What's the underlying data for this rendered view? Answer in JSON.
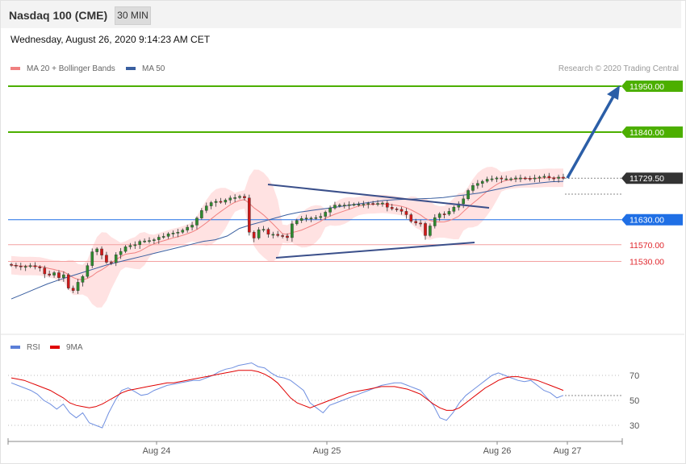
{
  "header": {
    "title": "Nasdaq 100 (CME)",
    "timeframe": "30 MIN"
  },
  "timestamp": "Wednesday, August 26, 2020 9:14:23 AM CET",
  "legend": {
    "items": [
      {
        "label": "MA 20 + Bollinger Bands",
        "color": "#f08080"
      },
      {
        "label": "MA 50",
        "color": "#3a5fa0"
      }
    ],
    "credit": "Research © 2020 Trading Central"
  },
  "rsi_legend": {
    "items": [
      {
        "label": "RSI",
        "color": "#5b7fd8"
      },
      {
        "label": "9MA",
        "color": "#e00000"
      }
    ]
  },
  "chart_data": [
    {
      "type": "line",
      "panel": "price",
      "x_ticks": [
        "Aug 24",
        "Aug 25",
        "Aug 26",
        "Aug 27"
      ],
      "ylim": [
        11440,
        11990
      ],
      "levels": [
        {
          "value": 11950,
          "label": "11950.00",
          "style": "resistance",
          "color": "#4caf00"
        },
        {
          "value": 11840,
          "label": "11840.00",
          "style": "resistance",
          "color": "#4caf00"
        },
        {
          "value": 11729.5,
          "label": "11729.50",
          "style": "last",
          "color": "#333333"
        },
        {
          "value": 11630,
          "label": "11630.00",
          "style": "pivot",
          "color": "#1f6fe5"
        },
        {
          "value": 11570,
          "label": "11570.00",
          "style": "support",
          "color": "#e0282e"
        },
        {
          "value": 11530,
          "label": "11530.00",
          "style": "support",
          "color": "#e0282e"
        }
      ],
      "series": [
        {
          "name": "Close",
          "values": [
            11521,
            11519,
            11517,
            11518,
            11520,
            11517,
            11514,
            11500,
            11497,
            11503,
            11491,
            11498,
            11466,
            11460,
            11480,
            11494,
            11520,
            11553,
            11560,
            11545,
            11528,
            11527,
            11546,
            11554,
            11565,
            11568,
            11570,
            11578,
            11579,
            11580,
            11582,
            11588,
            11590,
            11596,
            11598,
            11600,
            11605,
            11612,
            11617,
            11634,
            11652,
            11663,
            11671,
            11674,
            11672,
            11677,
            11682,
            11683,
            11686,
            11682,
            11600,
            11586,
            11606,
            11607,
            11595,
            11595,
            11592,
            11591,
            11587,
            11620,
            11628,
            11633,
            11634,
            11634,
            11635,
            11638,
            11648,
            11658,
            11665,
            11665,
            11665,
            11666,
            11667,
            11667,
            11667,
            11669,
            11668,
            11669,
            11670,
            11660,
            11656,
            11655,
            11650,
            11642,
            11626,
            11622,
            11621,
            11592,
            11615,
            11635,
            11644,
            11643,
            11650,
            11660,
            11668,
            11680,
            11700,
            11712,
            11717,
            11722,
            11727,
            11728,
            11730,
            11728,
            11728,
            11728,
            11730,
            11730,
            11729,
            11728,
            11730,
            11732,
            11734,
            11730,
            11729,
            11732,
            11729
          ]
        },
        {
          "name": "MA 50",
          "values": [
            11440,
            11452,
            11464,
            11476,
            11486,
            11495,
            11504,
            11513,
            11522,
            11529,
            11536,
            11543,
            11550,
            11557,
            11564,
            11571,
            11578,
            11582,
            11591,
            11609,
            11618,
            11626,
            11634,
            11642,
            11648,
            11652,
            11656,
            11660,
            11664,
            11668,
            11672,
            11676,
            11678,
            11679,
            11680,
            11681,
            11683,
            11687,
            11690,
            11694,
            11700,
            11706,
            11712,
            11715,
            11718,
            11721,
            11722
          ]
        }
      ],
      "annotations": {
        "channel_upper": [
          [
            11706,
            11648
          ]
        ],
        "channel_lower": [
          [
            11548,
            11588
          ]
        ],
        "forecast_target": 11950
      }
    },
    {
      "type": "line",
      "panel": "rsi",
      "yticks": [
        70,
        50,
        30
      ],
      "series": [
        {
          "name": "RSI",
          "values": [
            64,
            62,
            60,
            58,
            55,
            50,
            47,
            43,
            47,
            40,
            36,
            40,
            32,
            30,
            28,
            40,
            50,
            58,
            60,
            57,
            54,
            55,
            58,
            60,
            62,
            63,
            64,
            65,
            66,
            66,
            68,
            70,
            73,
            75,
            76,
            78,
            79,
            80,
            77,
            76,
            72,
            69,
            68,
            66,
            62,
            58,
            48,
            44,
            40,
            46,
            48,
            50,
            52,
            54,
            56,
            58,
            60,
            62,
            63,
            64,
            64,
            62,
            60,
            58,
            52,
            46,
            36,
            34,
            40,
            48,
            54,
            58,
            62,
            66,
            70,
            72,
            70,
            68,
            66,
            65,
            66,
            62,
            58,
            56,
            52,
            54
          ]
        },
        {
          "name": "9MA",
          "values": [
            68,
            67,
            66,
            64,
            62,
            60,
            58,
            55,
            52,
            48,
            46,
            45,
            44,
            45,
            47,
            50,
            53,
            56,
            58,
            59,
            60,
            61,
            62,
            63,
            64,
            64,
            65,
            66,
            67,
            68,
            69,
            70,
            71,
            72,
            73,
            74,
            74,
            74,
            73,
            71,
            68,
            64,
            58,
            52,
            48,
            46,
            44,
            46,
            48,
            50,
            52,
            54,
            56,
            57,
            58,
            59,
            60,
            61,
            61,
            61,
            60,
            59,
            57,
            55,
            51,
            47,
            44,
            42,
            42,
            44,
            48,
            52,
            56,
            60,
            63,
            66,
            68,
            69,
            69,
            68,
            67,
            66,
            64,
            62,
            60,
            58
          ]
        }
      ]
    }
  ]
}
